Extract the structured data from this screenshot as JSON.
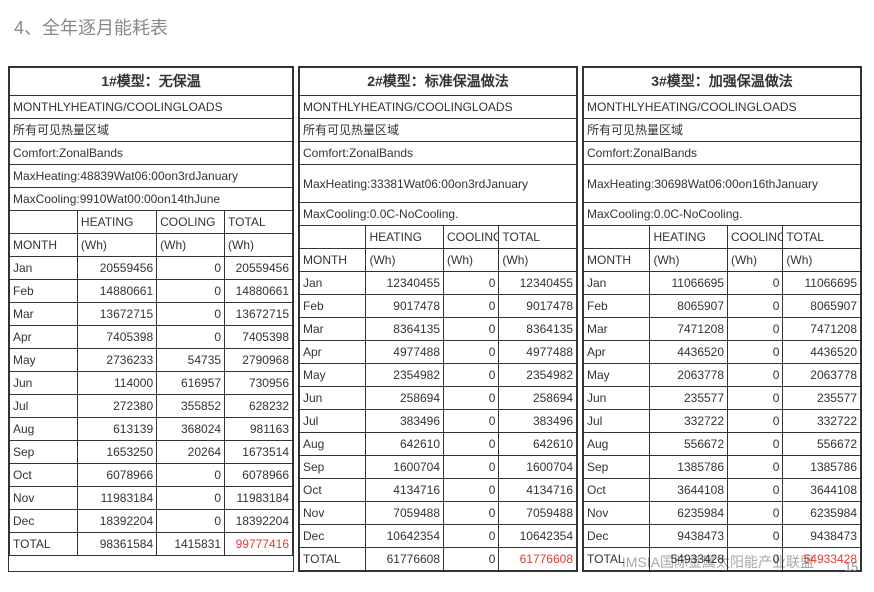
{
  "page_title": "4、全年逐月能耗表",
  "watermark": "IMSIA国际金属太阳能产业联盟",
  "pagenum": "15",
  "columns": [
    "MONTH",
    "HEATING (Wh)",
    "COOLING (Wh)",
    "TOTAL (Wh)"
  ],
  "subhead_h": "HEATING",
  "subhead_c": "COOLING",
  "subhead_t": "TOTAL",
  "unit": "(Wh)",
  "month_label": "MONTH",
  "common": {
    "loads": "MONTHLYHEATING/COOLINGLOADS",
    "zone": "所有可见热量区域",
    "bands": "Comfort:ZonalBands"
  },
  "panels": [
    {
      "title": "1#模型：无保温",
      "maxheat": "MaxHeating:48839Wat06:00on3rdJanuary",
      "maxcool": "MaxCooling:9910Wat00:00on14thJune",
      "rows": [
        [
          "Jan",
          "20559456",
          "0",
          "20559456"
        ],
        [
          "Feb",
          "14880661",
          "0",
          "14880661"
        ],
        [
          "Mar",
          "13672715",
          "0",
          "13672715"
        ],
        [
          "Apr",
          "7405398",
          "0",
          "7405398"
        ],
        [
          "May",
          "2736233",
          "54735",
          "2790968"
        ],
        [
          "Jun",
          "114000",
          "616957",
          "730956"
        ],
        [
          "Jul",
          "272380",
          "355852",
          "628232"
        ],
        [
          "Aug",
          "613139",
          "368024",
          "981163"
        ],
        [
          "Sep",
          "1653250",
          "20264",
          "1673514"
        ],
        [
          "Oct",
          "6078966",
          "0",
          "6078966"
        ],
        [
          "Nov",
          "11983184",
          "0",
          "11983184"
        ],
        [
          "Dec",
          "18392204",
          "0",
          "18392204"
        ],
        [
          "TOTAL",
          "98361584",
          "1415831",
          "99777416"
        ]
      ],
      "total_red_col": 3
    },
    {
      "title": "2#模型：标准保温做法",
      "maxheat": "MaxHeating:33381Wat06:00on3rdJanuary",
      "maxcool": "MaxCooling:0.0C-NoCooling.",
      "rows": [
        [
          "Jan",
          "12340455",
          "0",
          "12340455"
        ],
        [
          "Feb",
          "9017478",
          "0",
          "9017478"
        ],
        [
          "Mar",
          "8364135",
          "0",
          "8364135"
        ],
        [
          "Apr",
          "4977488",
          "0",
          "4977488"
        ],
        [
          "May",
          "2354982",
          "0",
          "2354982"
        ],
        [
          "Jun",
          "258694",
          "0",
          "258694"
        ],
        [
          "Jul",
          "383496",
          "0",
          "383496"
        ],
        [
          "Aug",
          "642610",
          "0",
          "642610"
        ],
        [
          "Sep",
          "1600704",
          "0",
          "1600704"
        ],
        [
          "Oct",
          "4134716",
          "0",
          "4134716"
        ],
        [
          "Nov",
          "7059488",
          "0",
          "7059488"
        ],
        [
          "Dec",
          "10642354",
          "0",
          "10642354"
        ],
        [
          "TOTAL",
          "61776608",
          "0",
          "61776608"
        ]
      ],
      "total_red_col": 3
    },
    {
      "title": "3#模型：加强保温做法",
      "maxheat": "MaxHeating:30698Wat06:00on16thJanuary",
      "maxcool": "MaxCooling:0.0C-NoCooling.",
      "rows": [
        [
          "Jan",
          "11066695",
          "0",
          "11066695"
        ],
        [
          "Feb",
          "8065907",
          "0",
          "8065907"
        ],
        [
          "Mar",
          "7471208",
          "0",
          "7471208"
        ],
        [
          "Apr",
          "4436520",
          "0",
          "4436520"
        ],
        [
          "May",
          "2063778",
          "0",
          "2063778"
        ],
        [
          "Jun",
          "235577",
          "0",
          "235577"
        ],
        [
          "Jul",
          "332722",
          "0",
          "332722"
        ],
        [
          "Aug",
          "556672",
          "0",
          "556672"
        ],
        [
          "Sep",
          "1385786",
          "0",
          "1385786"
        ],
        [
          "Oct",
          "3644108",
          "0",
          "3644108"
        ],
        [
          "Nov",
          "6235984",
          "0",
          "6235984"
        ],
        [
          "Dec",
          "9438473",
          "0",
          "9438473"
        ],
        [
          "TOTAL",
          "54933428",
          "0",
          "54933428"
        ]
      ],
      "total_red_col": 3
    }
  ]
}
